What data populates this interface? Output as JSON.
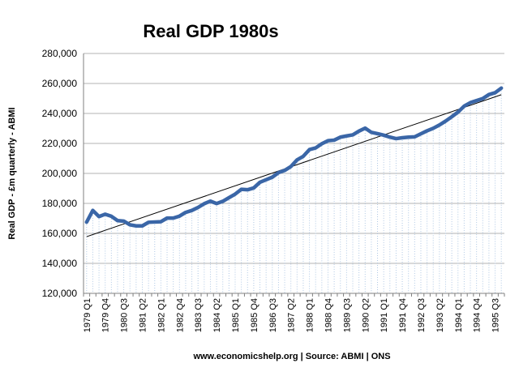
{
  "chart_data": {
    "type": "line",
    "title": "Real GDP 1980s",
    "ylabel": "Real GDP - £m quarterly - ABMI",
    "xlabel": "",
    "source": "www.economicshelp.org | Source:  ABMI | ONS",
    "ylim": [
      120000,
      280000
    ],
    "yticks": [
      120000,
      140000,
      160000,
      180000,
      200000,
      220000,
      240000,
      260000,
      280000
    ],
    "ytick_labels": [
      "120,000",
      "140,000",
      "160,000",
      "180,000",
      "200,000",
      "220,000",
      "240,000",
      "260,000",
      "280,000"
    ],
    "grid": "horizontal",
    "legend": "none",
    "x_labels": [
      "1979 Q1",
      "1979 Q4",
      "1980 Q3",
      "1981 Q2",
      "1982 Q1",
      "1982 Q4",
      "1983 Q3",
      "1984 Q2",
      "1985 Q1",
      "1985 Q4",
      "1986 Q3",
      "1987 Q2",
      "1988 Q1",
      "1988 Q4",
      "1989 Q3",
      "1990 Q2",
      "1991 Q1",
      "1991 Q4",
      "1992 Q3",
      "1993 Q2",
      "1994 Q1",
      "1994 Q4",
      "1995 Q3"
    ],
    "x_label_every": 3,
    "categories": [
      "1979 Q1",
      "1979 Q2",
      "1979 Q3",
      "1979 Q4",
      "1980 Q1",
      "1980 Q2",
      "1980 Q3",
      "1980 Q4",
      "1981 Q1",
      "1981 Q2",
      "1981 Q3",
      "1981 Q4",
      "1982 Q1",
      "1982 Q2",
      "1982 Q3",
      "1982 Q4",
      "1983 Q1",
      "1983 Q2",
      "1983 Q3",
      "1983 Q4",
      "1984 Q1",
      "1984 Q2",
      "1984 Q3",
      "1984 Q4",
      "1985 Q1",
      "1985 Q2",
      "1985 Q3",
      "1985 Q4",
      "1986 Q1",
      "1986 Q2",
      "1986 Q3",
      "1986 Q4",
      "1987 Q1",
      "1987 Q2",
      "1987 Q3",
      "1987 Q4",
      "1988 Q1",
      "1988 Q2",
      "1988 Q3",
      "1988 Q4",
      "1989 Q1",
      "1989 Q2",
      "1989 Q3",
      "1989 Q4",
      "1990 Q1",
      "1990 Q2",
      "1990 Q3",
      "1990 Q4",
      "1991 Q1",
      "1991 Q2",
      "1991 Q3",
      "1991 Q4",
      "1992 Q1",
      "1992 Q2",
      "1992 Q3",
      "1992 Q4",
      "1993 Q1",
      "1993 Q2",
      "1993 Q3",
      "1993 Q4",
      "1994 Q1",
      "1994 Q2",
      "1994 Q3",
      "1994 Q4",
      "1995 Q1",
      "1995 Q2",
      "1995 Q3",
      "1995 Q4"
    ],
    "series": [
      {
        "color": "#3A66A7",
        "values": [
          167500,
          175300,
          171200,
          172800,
          171400,
          168500,
          168200,
          165700,
          165000,
          165000,
          167400,
          167600,
          167800,
          170200,
          170200,
          171500,
          174000,
          175300,
          177300,
          179800,
          181500,
          179900,
          181400,
          183800,
          186200,
          189400,
          189100,
          190300,
          194100,
          195800,
          197500,
          200500,
          202000,
          204600,
          209000,
          211400,
          215900,
          217000,
          219800,
          221800,
          222200,
          224200,
          225000,
          225700,
          228200,
          230200,
          227400,
          226500,
          225500,
          224200,
          223200,
          223800,
          224200,
          224400,
          226400,
          228400,
          230100,
          232300,
          234900,
          237800,
          240900,
          244900,
          247200,
          248600,
          249900,
          252600,
          253800,
          256900
        ]
      }
    ],
    "trendline": {
      "color": "#000000",
      "start": 157800,
      "end": 252500
    }
  }
}
